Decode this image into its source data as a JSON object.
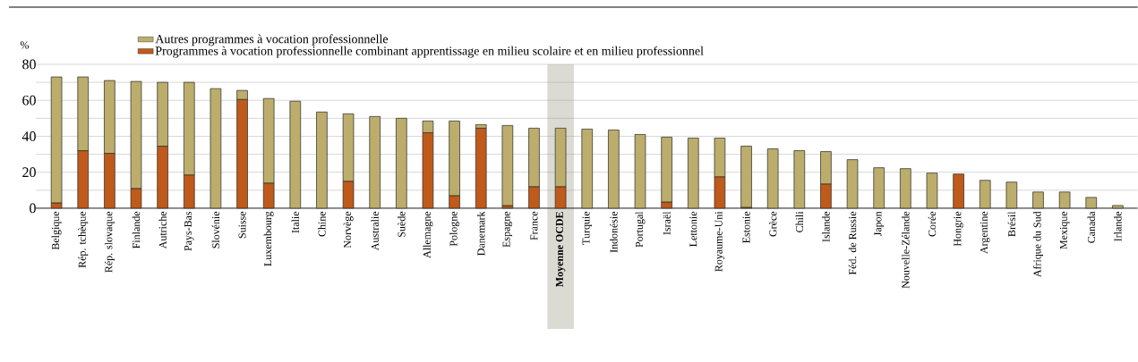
{
  "chart_data": {
    "type": "bar",
    "stacked": true,
    "ylabel": "%",
    "categories": [
      "Belgique",
      "Rép. tchèque",
      "Rép. slovaque",
      "Finlande",
      "Autriche",
      "Pays-Bas",
      "Slovénie",
      "Suisse",
      "Luxembourg",
      "Italie",
      "Chine",
      "Norvège",
      "Australie",
      "Suède",
      "Allemagne",
      "Pologne",
      "Danemark",
      "Espagne",
      "France",
      "**Moyenne OCDE**",
      "Turquie",
      "Indonésie",
      "Portugal",
      "Israël",
      "Lettonie",
      "Royaume-Uni",
      "Estonie",
      "Grèce",
      "Chili",
      "Islande",
      "Féd. de Russie",
      "Japon",
      "Nouvelle-Zélande",
      "Corée",
      "Hongrie",
      "Argentine",
      "Brésil",
      "Afrique du Sud",
      "Mexique",
      "Canada",
      "Irlande"
    ],
    "series": [
      {
        "name": "Programmes à vocation professionnelle combinant apprentissage en milieu scolaire et en milieu professionnel",
        "color": "#c05a1a",
        "values": [
          3,
          32,
          30.5,
          11,
          34.5,
          18.5,
          null,
          60.5,
          14,
          null,
          null,
          15,
          null,
          null,
          42,
          7,
          44.5,
          1.5,
          12,
          12,
          null,
          null,
          null,
          3.5,
          null,
          17.5,
          0.5,
          null,
          null,
          13.5,
          null,
          null,
          null,
          null,
          19,
          null,
          null,
          null,
          null,
          null,
          null
        ]
      },
      {
        "name": "Autres programmes à vocation professionnelle",
        "color": "#bcad6c",
        "values": [
          70,
          41,
          40.5,
          59.5,
          35.5,
          51.5,
          66.5,
          5,
          47,
          59.5,
          53.5,
          37.5,
          51,
          50,
          6.5,
          41.5,
          2,
          44.5,
          32.5,
          32.5,
          44,
          43.5,
          41,
          36,
          39,
          21.5,
          34,
          33,
          32,
          18,
          27,
          22.5,
          22,
          19.5,
          null,
          15.5,
          14.5,
          9,
          9,
          6,
          1.5
        ]
      }
    ],
    "ylim": [
      0,
      80
    ],
    "yticks": [
      0,
      {
        "value": 10,
        "label": null
      },
      20,
      {
        "value": 30,
        "label": null
      },
      40,
      {
        "value": 50,
        "label": null
      },
      60,
      {
        "value": 70,
        "label": null
      },
      80
    ],
    "grid": "y",
    "legend": "top left",
    "bands": [
      {
        "axis": "x",
        "from": "**Moyenne OCDE**",
        "to": "**Moyenne OCDE**",
        "color": "#dcdbd3"
      }
    ]
  }
}
